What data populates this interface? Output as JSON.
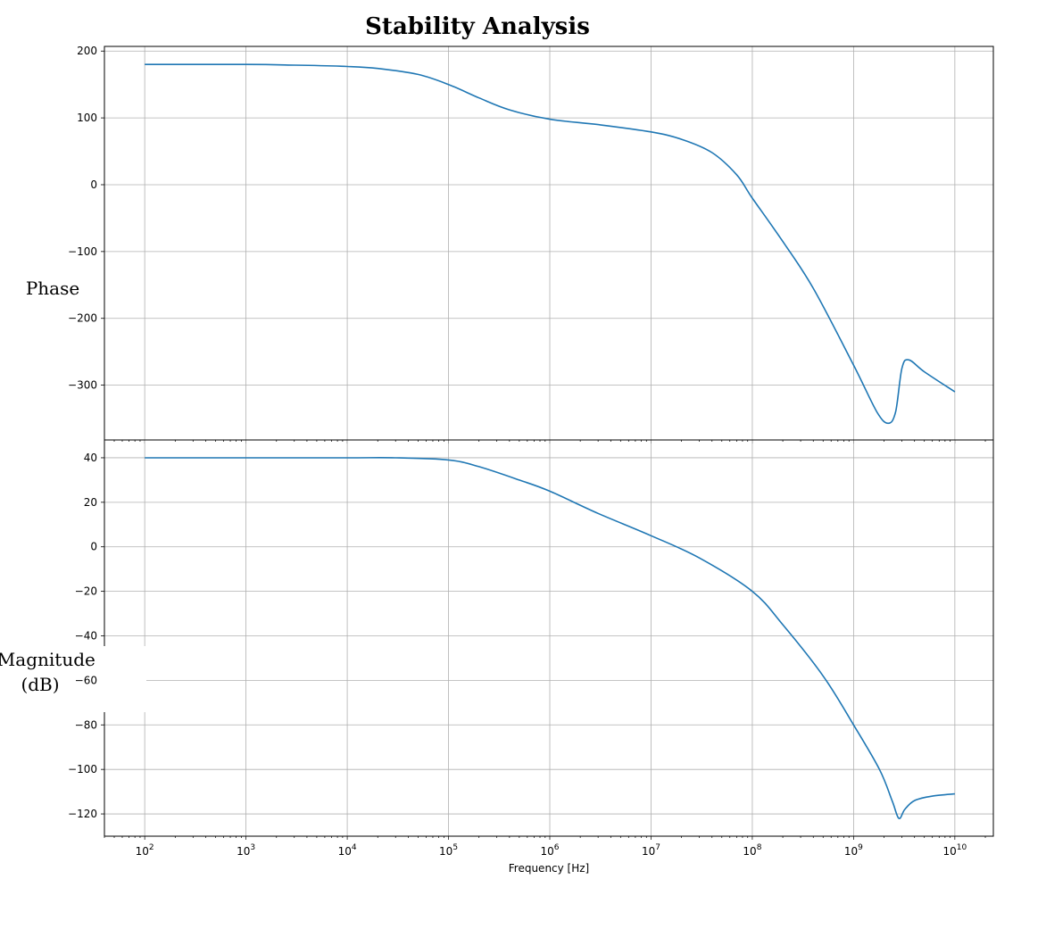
{
  "chart_data": [
    {
      "type": "line",
      "title": "Stability Analysis",
      "ylabel": "Phase",
      "xlabel": "",
      "x_scale": "log",
      "xlim": [
        40,
        24000000000
      ],
      "ylim": [
        -382,
        207
      ],
      "grid": true,
      "y_ticks": [
        200,
        100,
        0,
        -100,
        -200,
        -300
      ],
      "y_tick_labels": [
        "200",
        "100",
        "0",
        "−100",
        "−200",
        "−300"
      ],
      "series": [
        {
          "color": "#1f77b4",
          "x": [
            100,
            1000,
            3000,
            10000,
            20000,
            50000,
            100000,
            200000,
            400000,
            1000000,
            3000000,
            10000000,
            20000000,
            40000000,
            70000000,
            100000000,
            200000000,
            400000000,
            1000000000,
            1700000000,
            2200000000,
            2600000000,
            3000000000,
            3500000000,
            5000000000,
            10000000000
          ],
          "y": [
            180,
            180,
            179,
            177,
            174,
            165,
            150,
            130,
            112,
            98,
            90,
            79,
            68,
            48,
            15,
            -20,
            -85,
            -155,
            -270,
            -340,
            -357,
            -340,
            -275,
            -262,
            -280,
            -310
          ]
        }
      ]
    },
    {
      "type": "line",
      "title": "",
      "ylabel": "Magnitude\n(dB)",
      "xlabel": "Frequency [Hz]",
      "x_scale": "log",
      "xlim": [
        40,
        24000000000
      ],
      "ylim": [
        -130,
        48
      ],
      "grid": true,
      "x_ticks": [
        100,
        1000,
        10000,
        100000,
        1000000,
        10000000,
        100000000,
        1000000000,
        10000000000
      ],
      "x_tick_labels": [
        {
          "base": "10",
          "exp": "2"
        },
        {
          "base": "10",
          "exp": "3"
        },
        {
          "base": "10",
          "exp": "4"
        },
        {
          "base": "10",
          "exp": "5"
        },
        {
          "base": "10",
          "exp": "6"
        },
        {
          "base": "10",
          "exp": "7"
        },
        {
          "base": "10",
          "exp": "8"
        },
        {
          "base": "10",
          "exp": "9"
        },
        {
          "base": "10",
          "exp": "10"
        }
      ],
      "y_ticks": [
        40,
        20,
        0,
        -20,
        -40,
        -60,
        -80,
        -100,
        -120
      ],
      "y_tick_labels": [
        "40",
        "20",
        "0",
        "−20",
        "−40",
        "−60",
        "−80",
        "−100",
        "−120"
      ],
      "series": [
        {
          "color": "#1f77b4",
          "x": [
            100,
            1000,
            10000,
            30000,
            100000,
            200000,
            500000,
            1000000,
            3000000,
            10000000,
            30000000,
            100000000,
            200000000,
            500000000,
            1000000000,
            1800000000,
            2400000000,
            2800000000,
            3200000000,
            4000000000,
            6000000000,
            10000000000
          ],
          "y": [
            40,
            40,
            40,
            40,
            39,
            36,
            30,
            25,
            15,
            5,
            -5,
            -20,
            -35,
            -58,
            -80,
            -100,
            -114,
            -122,
            -118,
            -114,
            -112,
            -111
          ]
        }
      ]
    }
  ]
}
